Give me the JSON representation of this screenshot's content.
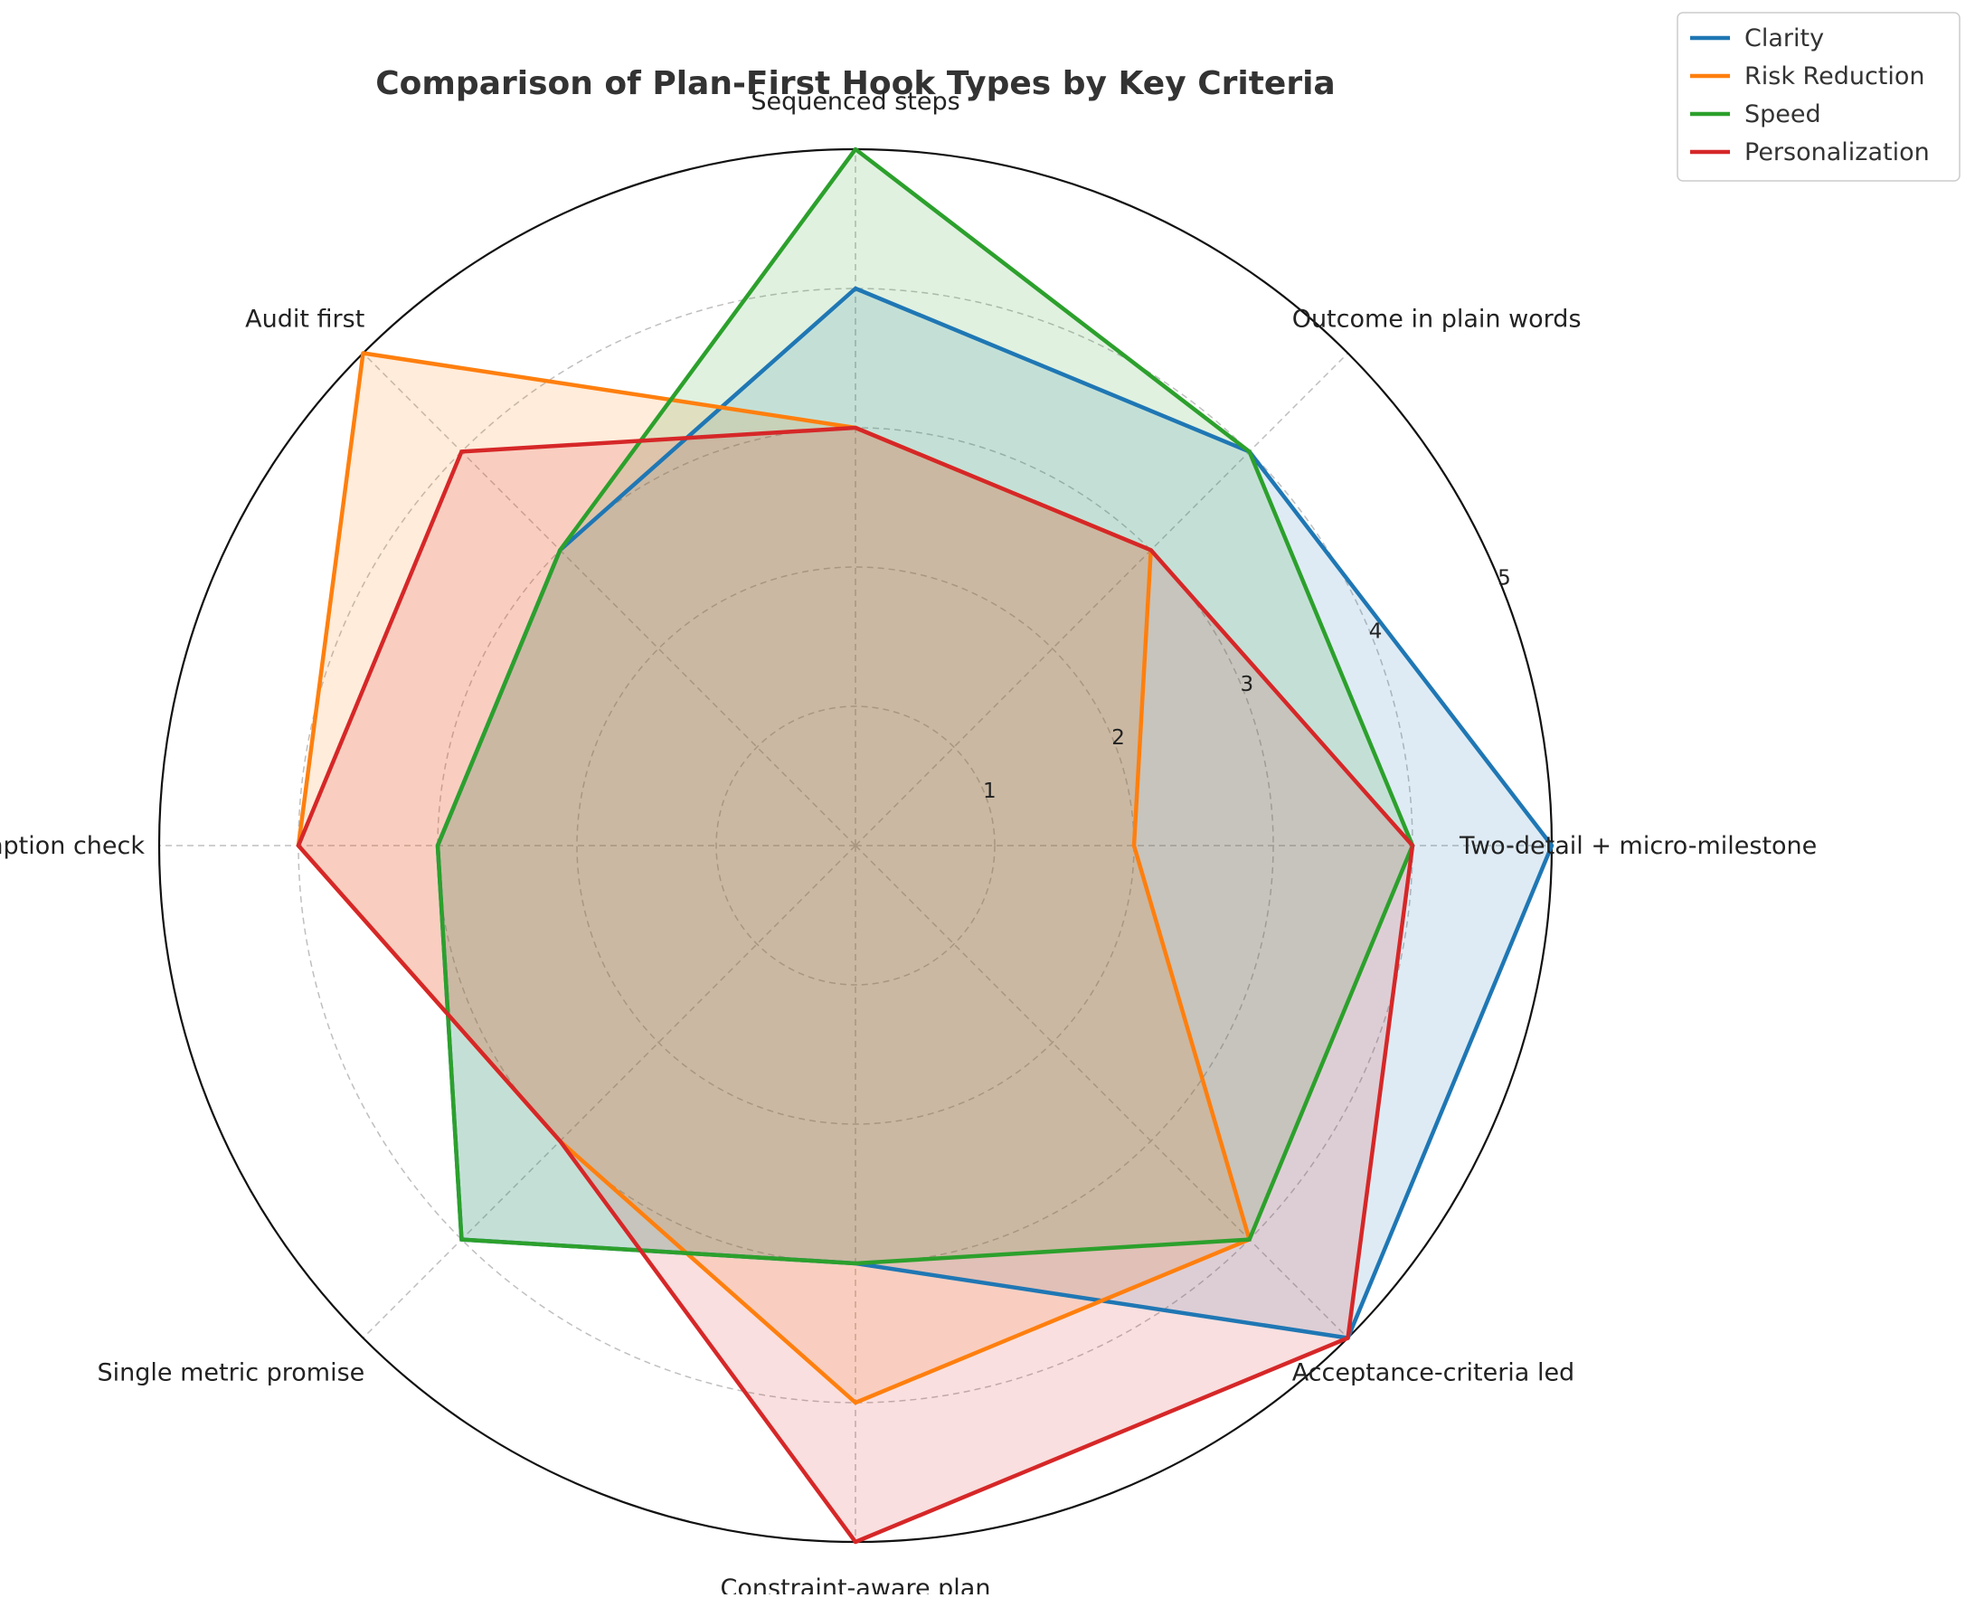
{
  "chart_data": {
    "type": "radar",
    "title": "Comparison of Plan-First Hook Types by Key Criteria",
    "categories": [
      "Two-detail + micro-milestone",
      "Outcome in plain words",
      "Sequenced steps",
      "Audit first",
      "Assumption check",
      "Single metric promise",
      "Constraint-aware plan",
      "Acceptance-criteria led"
    ],
    "rlim": [
      0,
      5
    ],
    "rticks": [
      1,
      2,
      3,
      4,
      5
    ],
    "grid": true,
    "legend_position": "top-right",
    "series": [
      {
        "name": "Clarity",
        "color": "#1f77b4",
        "values": [
          5,
          4,
          4,
          3,
          3,
          4,
          3,
          5
        ]
      },
      {
        "name": "Risk Reduction",
        "color": "#ff7f0e",
        "values": [
          2,
          3,
          3,
          5,
          4,
          3,
          4,
          4
        ]
      },
      {
        "name": "Speed",
        "color": "#2ca02c",
        "values": [
          4,
          4,
          5,
          3,
          3,
          4,
          3,
          4
        ]
      },
      {
        "name": "Personalization",
        "color": "#d62728",
        "values": [
          4,
          3,
          3,
          4,
          4,
          3,
          5,
          5
        ]
      }
    ]
  }
}
